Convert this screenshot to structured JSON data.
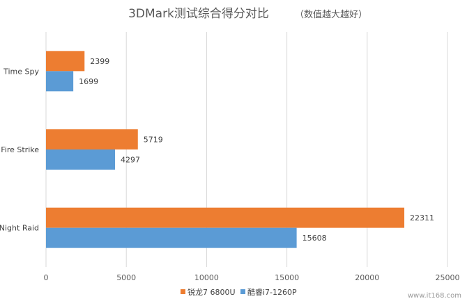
{
  "chart_data": {
    "type": "bar",
    "orientation": "horizontal",
    "title": "3DMark测试综合得分对比",
    "subtitle": "（数值越大越好）",
    "categories": [
      "Time Spy",
      "Fire Strike",
      "Night Raid"
    ],
    "series": [
      {
        "name": "锐龙7 6800U",
        "values": [
          2399,
          5719,
          22311
        ],
        "color": "#ED7D31"
      },
      {
        "name": "酷睿i7-1260P",
        "values": [
          1699,
          4297,
          15608
        ],
        "color": "#5B9BD5"
      }
    ],
    "xlim": [
      0,
      25000
    ],
    "ticks": [
      "0",
      "5000",
      "10000",
      "15000",
      "20000",
      "25000"
    ],
    "grid": true,
    "legend_position": "bottom"
  },
  "watermark": "www.it168.com"
}
